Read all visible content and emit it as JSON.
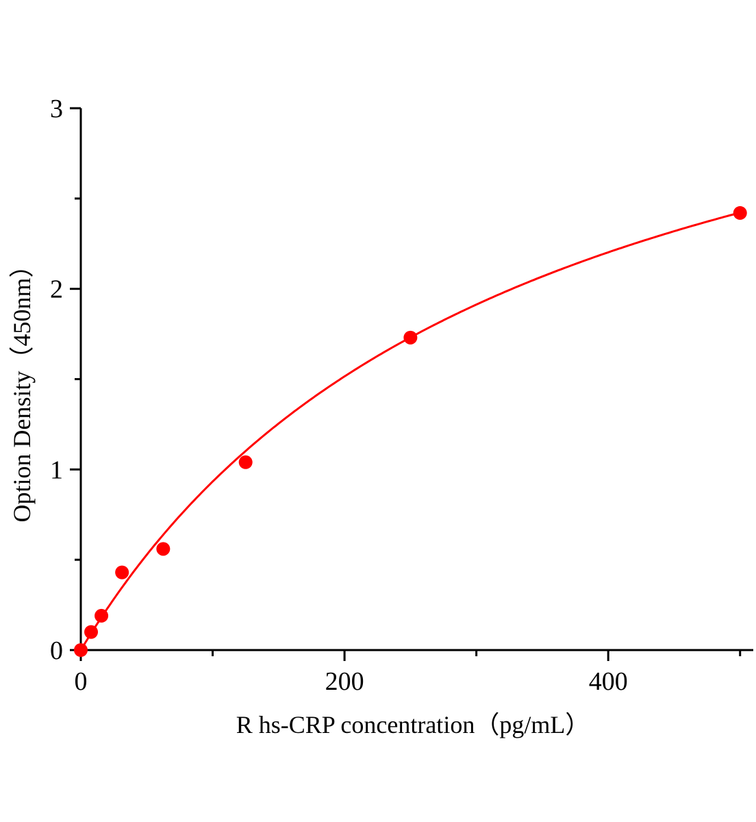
{
  "chart_data": {
    "type": "scatter",
    "title": "",
    "xlabel": "R hs-CRP   concentration（pg/mL）",
    "ylabel": "Option Density（450nm）",
    "xlim": [
      0,
      510
    ],
    "ylim": [
      0,
      3
    ],
    "x_ticks": [
      "0",
      "200",
      "400"
    ],
    "y_ticks": [
      "0",
      "1",
      "2",
      "3"
    ],
    "grid": false,
    "legend": "none",
    "color": "#ff0000",
    "fit_curve": true,
    "series": [
      {
        "x": [
          0,
          7.8125,
          15.625,
          31.25,
          62.5,
          125,
          250,
          500
        ],
        "y": [
          0,
          0.1,
          0.19,
          0.43,
          0.56,
          1.04,
          1.73,
          2.42
        ]
      }
    ]
  }
}
